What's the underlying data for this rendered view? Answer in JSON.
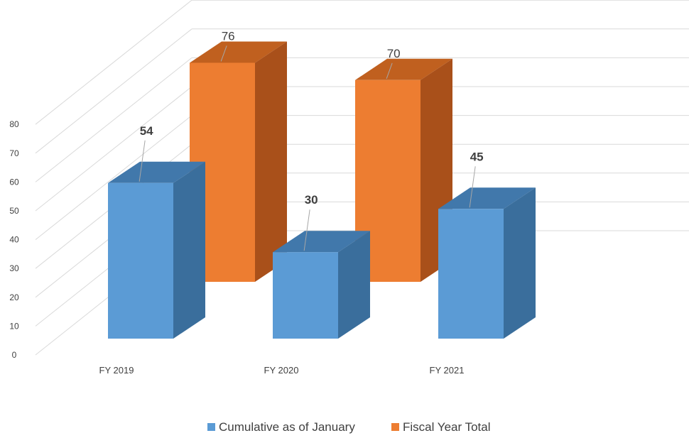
{
  "chart_data": {
    "type": "bar",
    "categories": [
      "FY 2019",
      "FY 2020",
      "FY 2021"
    ],
    "series": [
      {
        "name": "Cumulative as of January",
        "values": [
          54,
          30,
          45
        ],
        "color": "#5b9bd5",
        "side_color": "#3a6e9c",
        "top_color": "#4178ab"
      },
      {
        "name": "Fiscal Year Total",
        "values": [
          76,
          70,
          null
        ],
        "color": "#ed7d31",
        "side_color": "#a9501a",
        "top_color": "#c0601f"
      }
    ],
    "yticks": [
      "0",
      "10",
      "20",
      "30",
      "40",
      "50",
      "60",
      "70",
      "80"
    ],
    "ylim": [
      0,
      80
    ],
    "legend_position": "bottom",
    "grid": true
  }
}
